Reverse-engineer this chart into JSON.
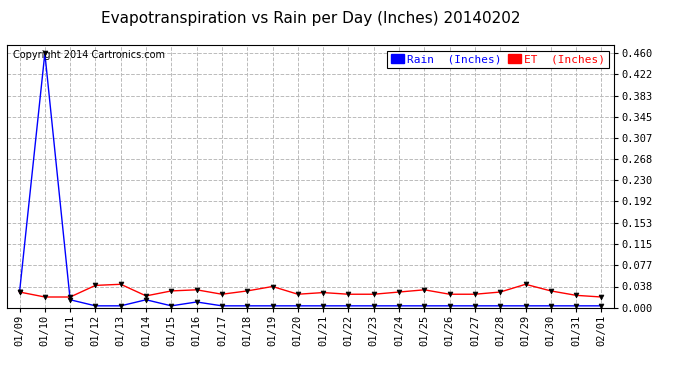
{
  "title": "Evapotranspiration vs Rain per Day (Inches) 20140202",
  "copyright": "Copyright 2014 Cartronics.com",
  "background_color": "#ffffff",
  "plot_bg_color": "#ffffff",
  "grid_color": "#bbbbbb",
  "x_labels": [
    "01/09",
    "01/10",
    "01/11",
    "01/12",
    "01/13",
    "01/14",
    "01/15",
    "01/16",
    "01/17",
    "01/18",
    "01/19",
    "01/20",
    "01/21",
    "01/22",
    "01/23",
    "01/24",
    "01/25",
    "01/26",
    "01/27",
    "01/28",
    "01/29",
    "01/30",
    "01/31",
    "02/01"
  ],
  "y_ticks": [
    0.0,
    0.038,
    0.077,
    0.115,
    0.153,
    0.192,
    0.23,
    0.268,
    0.307,
    0.345,
    0.383,
    0.422,
    0.46
  ],
  "ylim": [
    0.0,
    0.475
  ],
  "rain_color": "#0000ff",
  "et_color": "#ff0000",
  "rain_label": "Rain  (Inches)",
  "et_label": "ET  (Inches)",
  "rain_data": [
    0.028,
    0.46,
    0.014,
    0.003,
    0.003,
    0.014,
    0.003,
    0.01,
    0.003,
    0.003,
    0.003,
    0.003,
    0.003,
    0.003,
    0.003,
    0.003,
    0.003,
    0.003,
    0.003,
    0.003,
    0.003,
    0.003,
    0.003,
    0.003
  ],
  "et_data": [
    0.028,
    0.019,
    0.019,
    0.04,
    0.042,
    0.021,
    0.03,
    0.032,
    0.024,
    0.03,
    0.038,
    0.024,
    0.027,
    0.024,
    0.024,
    0.028,
    0.032,
    0.024,
    0.024,
    0.028,
    0.042,
    0.03,
    0.022,
    0.019
  ],
  "title_fontsize": 11,
  "tick_fontsize": 7.5,
  "copyright_fontsize": 7,
  "legend_fontsize": 8,
  "figwidth": 6.9,
  "figheight": 3.75,
  "dpi": 100
}
